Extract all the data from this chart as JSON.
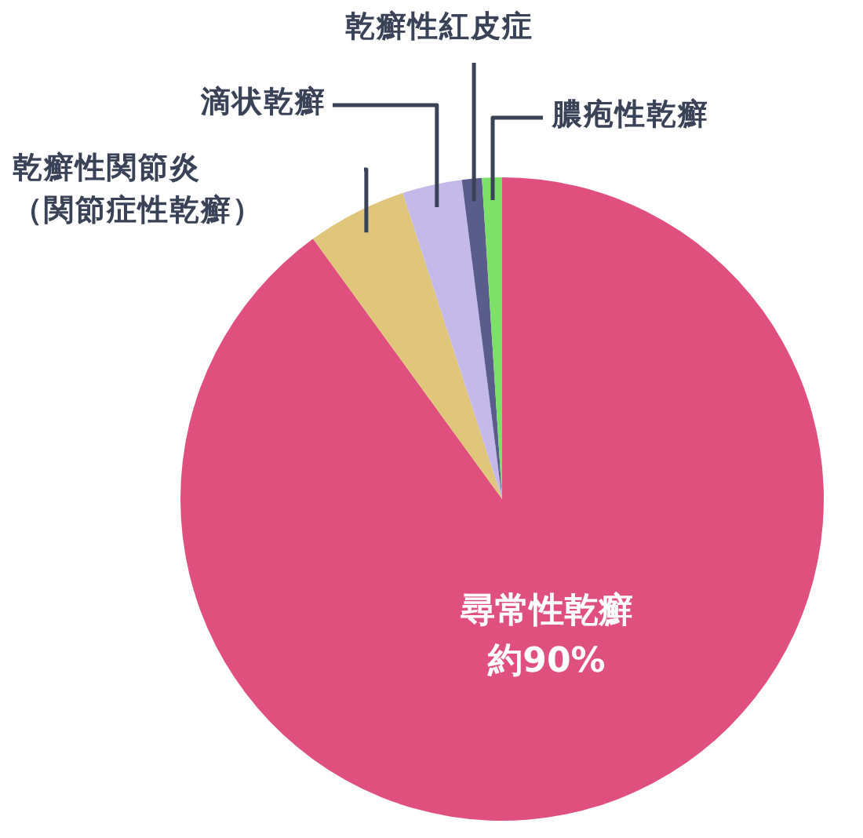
{
  "chart_data": {
    "type": "pie",
    "categories": [
      "尋常性乾癬",
      "乾癬性関節炎（関節症性乾癬）",
      "滴状乾癬",
      "乾癬性紅皮症",
      "膿疱性乾癬"
    ],
    "values": [
      90,
      5,
      3,
      1,
      1
    ],
    "colors": [
      "#e0507f",
      "#dfc67a",
      "#c4b9e8",
      "#5a5c8c",
      "#7de069"
    ],
    "value_labels": [
      "約90%",
      null,
      null,
      null,
      null
    ]
  }
}
